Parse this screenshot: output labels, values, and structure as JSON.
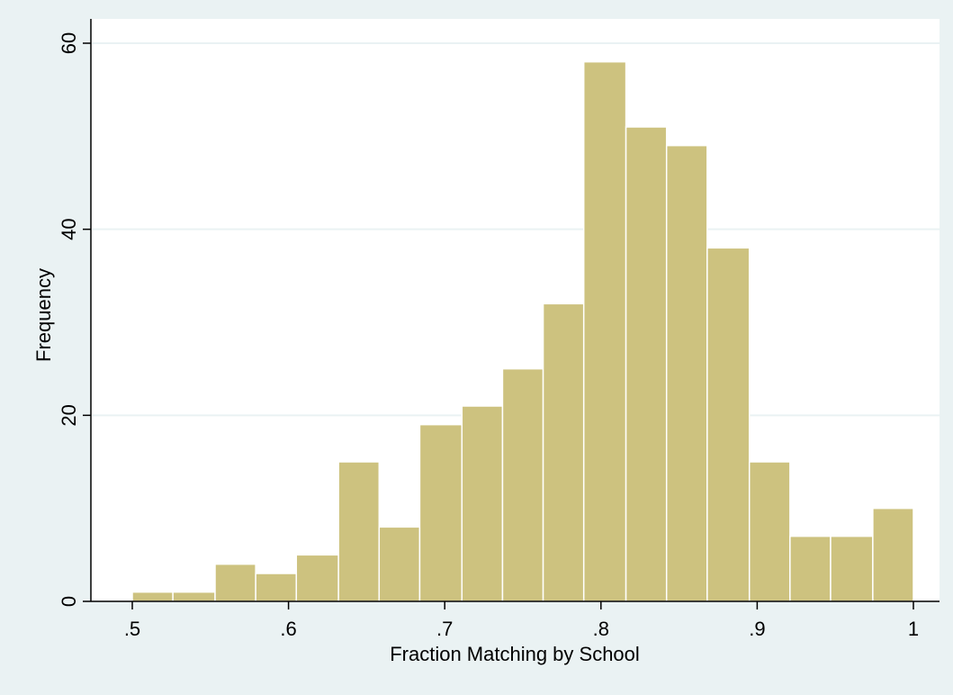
{
  "chart_data": {
    "type": "bar",
    "xlabel": "Fraction Matching by School",
    "ylabel": "Frequency",
    "xlim": [
      0.5,
      1.0
    ],
    "ylim": [
      0,
      60
    ],
    "bin_width": 0.0263,
    "bins": [
      {
        "x0": 0.5,
        "x1": 0.526,
        "value": 1
      },
      {
        "x0": 0.526,
        "x1": 0.553,
        "value": 1
      },
      {
        "x0": 0.553,
        "x1": 0.579,
        "value": 4
      },
      {
        "x0": 0.579,
        "x1": 0.605,
        "value": 3
      },
      {
        "x0": 0.605,
        "x1": 0.632,
        "value": 5
      },
      {
        "x0": 0.632,
        "x1": 0.658,
        "value": 15
      },
      {
        "x0": 0.658,
        "x1": 0.684,
        "value": 8
      },
      {
        "x0": 0.684,
        "x1": 0.711,
        "value": 19
      },
      {
        "x0": 0.711,
        "x1": 0.737,
        "value": 21
      },
      {
        "x0": 0.737,
        "x1": 0.763,
        "value": 25
      },
      {
        "x0": 0.763,
        "x1": 0.789,
        "value": 32
      },
      {
        "x0": 0.789,
        "x1": 0.816,
        "value": 58
      },
      {
        "x0": 0.816,
        "x1": 0.842,
        "value": 51
      },
      {
        "x0": 0.842,
        "x1": 0.868,
        "value": 49
      },
      {
        "x0": 0.868,
        "x1": 0.895,
        "value": 38
      },
      {
        "x0": 0.895,
        "x1": 0.921,
        "value": 15
      },
      {
        "x0": 0.921,
        "x1": 0.947,
        "value": 7
      },
      {
        "x0": 0.947,
        "x1": 0.974,
        "value": 7
      },
      {
        "x0": 0.974,
        "x1": 1.0,
        "value": 10
      }
    ],
    "x_ticks": [
      {
        "value": 0.5,
        "label": ".5"
      },
      {
        "value": 0.6,
        "label": ".6"
      },
      {
        "value": 0.7,
        "label": ".7"
      },
      {
        "value": 0.8,
        "label": ".8"
      },
      {
        "value": 0.9,
        "label": ".9"
      },
      {
        "value": 1.0,
        "label": "1"
      }
    ],
    "y_ticks": [
      {
        "value": 0,
        "label": "0"
      },
      {
        "value": 20,
        "label": "20"
      },
      {
        "value": 40,
        "label": "40"
      },
      {
        "value": 60,
        "label": "60"
      }
    ],
    "grid": true,
    "colors": {
      "background": "#eaf2f3",
      "plot_background": "#ffffff",
      "bar_fill": "#cdc27f",
      "bar_outline": "#ffffff",
      "gridline": "#eaf2f3"
    }
  }
}
